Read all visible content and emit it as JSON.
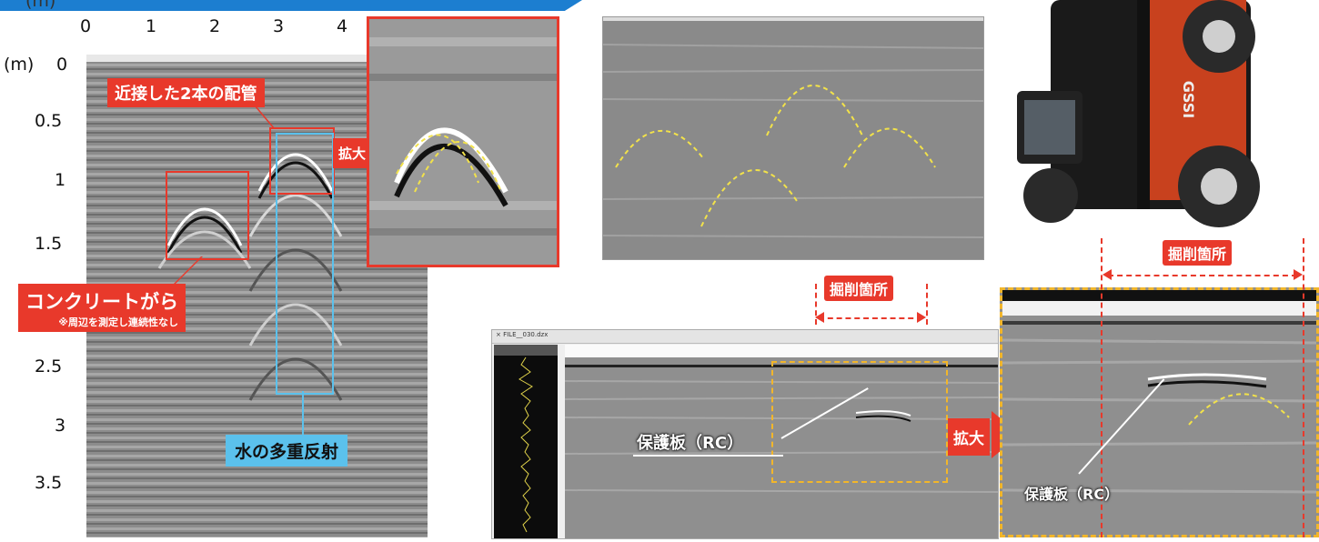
{
  "left_panel": {
    "x_unit": "(m)",
    "x_ticks": [
      "0",
      "1",
      "2",
      "3",
      "4"
    ],
    "y_unit": "(m)",
    "y_ticks": [
      "0",
      "0.5",
      "1",
      "1.5",
      "2.5",
      "3",
      "3.5"
    ],
    "callout_pipes": "近接した2本の配管",
    "callout_zoom": "拡大",
    "callout_debris_title": "コンクリートがら",
    "callout_debris_note": "※周辺を測定し連続性なし",
    "callout_water": "水の多重反射"
  },
  "right_panel": {
    "excavation_label_left": "掘削箇所",
    "excavation_label_right": "掘削箇所",
    "window_title": "× FILE__030.dzx",
    "protect_label_left": "保護板（RC）",
    "protect_label_right": "保護板（RC）",
    "zoom_label": "拡大",
    "device_brand": "GSSI"
  },
  "colors": {
    "accent_red": "#e8392b",
    "accent_blue": "#5bc1ec",
    "dash_yellow": "#f2e24a",
    "banner_blue": "#1c7ed0"
  }
}
